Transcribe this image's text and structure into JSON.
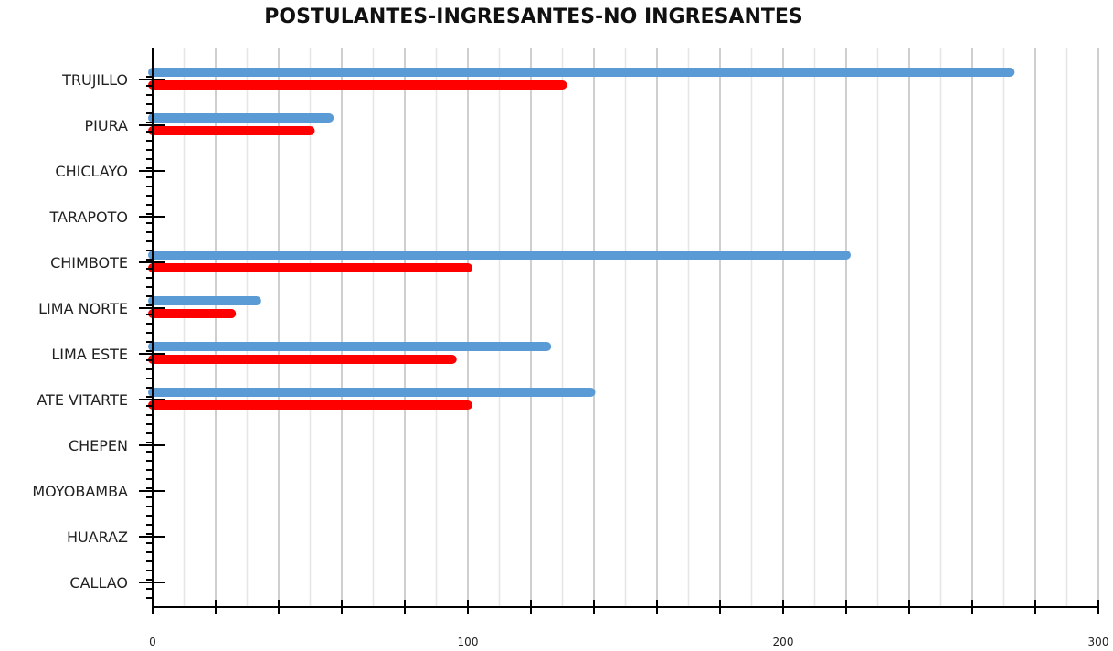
{
  "chart_data": {
    "type": "bar",
    "orientation": "horizontal",
    "title": "POSTULANTES-INGRESANTES-NO INGRESANTES",
    "xlabel": "",
    "ylabel": "",
    "categories": [
      "TRUJILLO",
      "PIURA",
      "CHICLAYO",
      "TARAPOTO",
      "CHIMBOTE",
      "LIMA NORTE",
      "LIMA ESTE",
      "ATE VITARTE",
      "CHEPEN",
      "MOYOBAMBA",
      "HUARAZ",
      "CALLAO"
    ],
    "series": [
      {
        "color": "#5B9BD5",
        "values": [
          272,
          56,
          0,
          0,
          220,
          33,
          125,
          139,
          0,
          0,
          0,
          0
        ]
      },
      {
        "color": "#FF0000",
        "values": [
          130,
          50,
          0,
          0,
          100,
          25,
          95,
          100,
          0,
          0,
          0,
          0
        ]
      }
    ],
    "xlim": [
      0,
      300
    ],
    "x_ticks": [
      "0",
      "100",
      "200",
      "300"
    ],
    "grid": true
  }
}
